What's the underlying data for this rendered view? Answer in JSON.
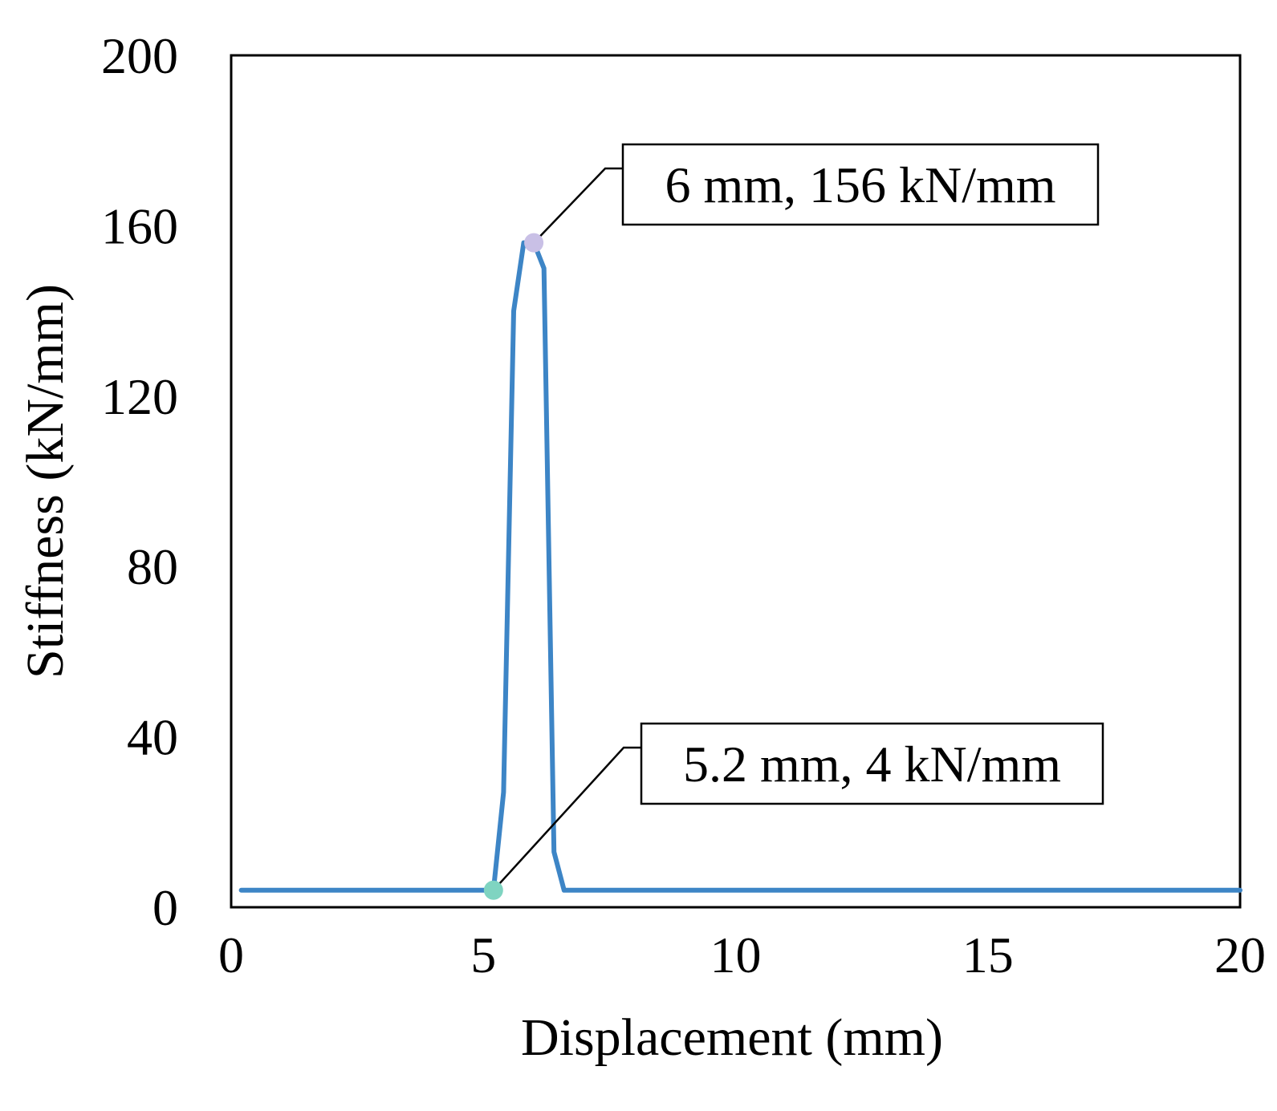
{
  "chart_data": {
    "type": "line",
    "xlabel": "Displacement (mm)",
    "ylabel": "Stiffness (kN/mm)",
    "xlim": [
      0,
      20
    ],
    "ylim": [
      0,
      200
    ],
    "xticks": [
      0,
      5,
      10,
      15,
      20
    ],
    "yticks": [
      0,
      40,
      80,
      120,
      160,
      200
    ],
    "xtick_labels": [
      "0",
      "5",
      "10",
      "15",
      "20"
    ],
    "ytick_labels": [
      "0",
      "40",
      "80",
      "120",
      "160",
      "200"
    ],
    "grid": false,
    "legend": "none",
    "series": [
      {
        "color": "#3d85c6",
        "x": [
          0.2,
          5.2,
          5.4,
          5.6,
          5.8,
          6.0,
          6.2,
          6.4,
          6.6,
          20.0
        ],
        "y": [
          4,
          4,
          27,
          140,
          156,
          156,
          150,
          13,
          4,
          4
        ]
      }
    ],
    "annotations": [
      {
        "text": "6 mm, 156 kN/mm",
        "x": 6.0,
        "y": 156,
        "marker_color": "#c9c0e6"
      },
      {
        "text": "5.2 mm, 4 kN/mm",
        "x": 5.2,
        "y": 4,
        "marker_color": "#7fd4c1"
      }
    ]
  }
}
